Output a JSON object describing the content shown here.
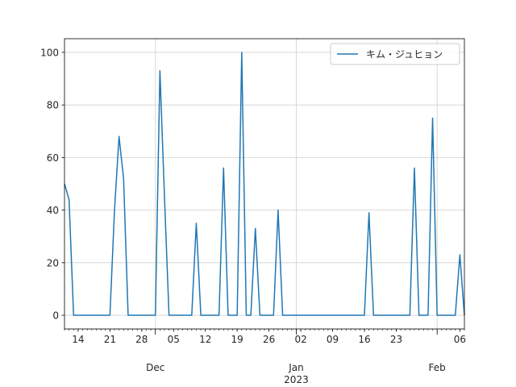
{
  "chart_data": {
    "type": "line",
    "x": [
      "2022-11-11",
      "2022-11-12",
      "2022-11-13",
      "2022-11-14",
      "2022-11-15",
      "2022-11-16",
      "2022-11-17",
      "2022-11-18",
      "2022-11-19",
      "2022-11-20",
      "2022-11-21",
      "2022-11-22",
      "2022-11-23",
      "2022-11-24",
      "2022-11-25",
      "2022-11-26",
      "2022-11-27",
      "2022-11-28",
      "2022-11-29",
      "2022-11-30",
      "2022-12-01",
      "2022-12-02",
      "2022-12-03",
      "2022-12-04",
      "2022-12-05",
      "2022-12-06",
      "2022-12-07",
      "2022-12-08",
      "2022-12-09",
      "2022-12-10",
      "2022-12-11",
      "2022-12-12",
      "2022-12-13",
      "2022-12-14",
      "2022-12-15",
      "2022-12-16",
      "2022-12-17",
      "2022-12-18",
      "2022-12-19",
      "2022-12-20",
      "2022-12-21",
      "2022-12-22",
      "2022-12-23",
      "2022-12-24",
      "2022-12-25",
      "2022-12-26",
      "2022-12-27",
      "2022-12-28",
      "2022-12-29",
      "2022-12-30",
      "2022-12-31",
      "2023-01-01",
      "2023-01-02",
      "2023-01-03",
      "2023-01-04",
      "2023-01-05",
      "2023-01-06",
      "2023-01-07",
      "2023-01-08",
      "2023-01-09",
      "2023-01-10",
      "2023-01-11",
      "2023-01-12",
      "2023-01-13",
      "2023-01-14",
      "2023-01-15",
      "2023-01-16",
      "2023-01-17",
      "2023-01-18",
      "2023-01-19",
      "2023-01-20",
      "2023-01-21",
      "2023-01-22",
      "2023-01-23",
      "2023-01-24",
      "2023-01-25",
      "2023-01-26",
      "2023-01-27",
      "2023-01-28",
      "2023-01-29",
      "2023-01-30",
      "2023-01-31",
      "2023-02-01",
      "2023-02-02",
      "2023-02-03",
      "2023-02-04",
      "2023-02-05",
      "2023-02-06",
      "2023-02-07"
    ],
    "series": [
      {
        "name": "キム・ジュヒョン",
        "color": "#1f77b4",
        "values": [
          50,
          44,
          0,
          0,
          0,
          0,
          0,
          0,
          0,
          0,
          0,
          40,
          68,
          52,
          0,
          0,
          0,
          0,
          0,
          0,
          0,
          93,
          45,
          0,
          0,
          0,
          0,
          0,
          0,
          35,
          0,
          0,
          0,
          0,
          0,
          56,
          0,
          0,
          0,
          100,
          0,
          0,
          33,
          0,
          0,
          0,
          0,
          40,
          0,
          0,
          0,
          0,
          0,
          0,
          0,
          0,
          0,
          0,
          0,
          0,
          0,
          0,
          0,
          0,
          0,
          0,
          0,
          39,
          0,
          0,
          0,
          0,
          0,
          0,
          0,
          0,
          0,
          56,
          0,
          0,
          0,
          75,
          0,
          0,
          0,
          0,
          0,
          23,
          0
        ]
      }
    ],
    "xlim": [
      "2022-11-11",
      "2023-02-07"
    ],
    "xticks": [
      {
        "value": "2022-11-14",
        "label": "14"
      },
      {
        "value": "2022-11-21",
        "label": "21"
      },
      {
        "value": "2022-11-28",
        "label": "28"
      },
      {
        "value": "2022-12-05",
        "label": "05"
      },
      {
        "value": "2022-12-12",
        "label": "12"
      },
      {
        "value": "2022-12-19",
        "label": "19"
      },
      {
        "value": "2022-12-26",
        "label": "26"
      },
      {
        "value": "2023-01-02",
        "label": "02"
      },
      {
        "value": "2023-01-09",
        "label": "09"
      },
      {
        "value": "2023-01-16",
        "label": "16"
      },
      {
        "value": "2023-01-23",
        "label": "23"
      },
      {
        "value": "2023-02-06",
        "label": "06"
      }
    ],
    "x_major_ticks": [
      {
        "value": "2022-12-01",
        "label": [
          "Dec"
        ]
      },
      {
        "value": "2023-01-01",
        "label": [
          "Jan",
          "2023"
        ]
      },
      {
        "value": "2023-02-01",
        "label": [
          "Feb"
        ]
      }
    ],
    "ylim": [
      -5.2,
      105.2
    ],
    "yticks": [
      0,
      20,
      40,
      60,
      80,
      100
    ],
    "grid": true,
    "legend": "upper right"
  }
}
